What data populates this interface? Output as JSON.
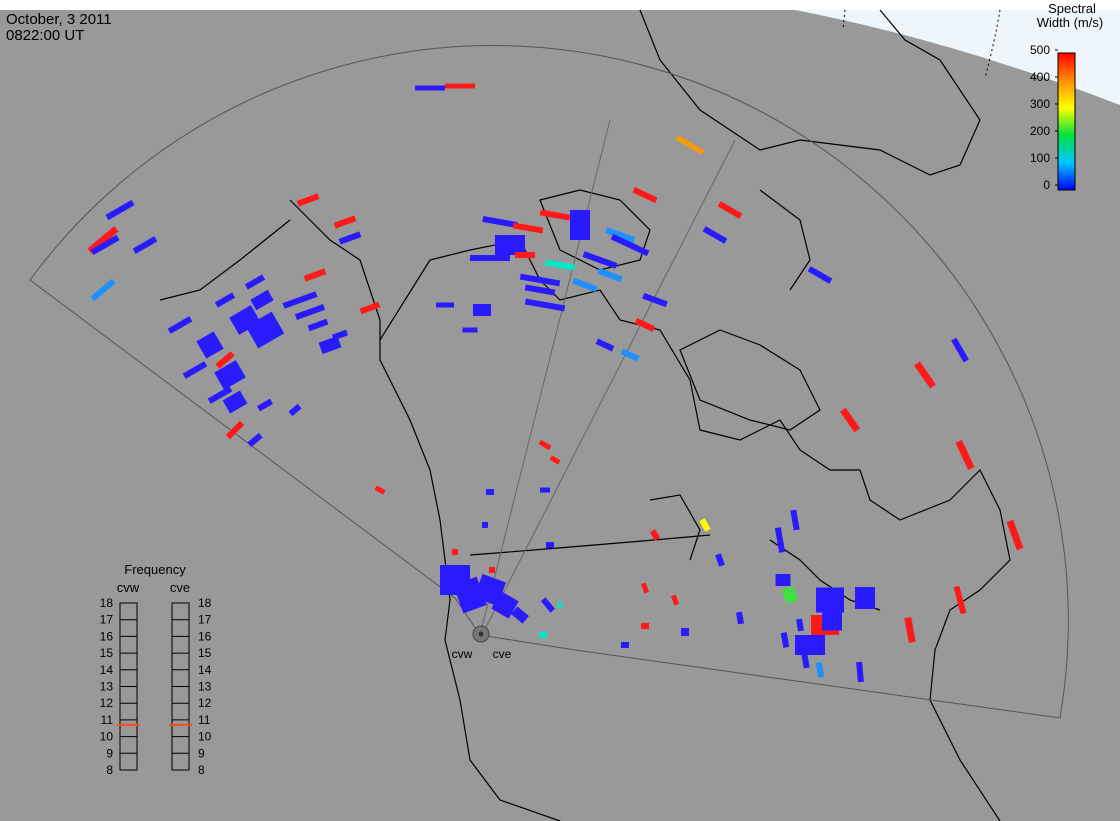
{
  "header": {
    "date": "October, 3 2011",
    "time": "0822:00 UT"
  },
  "colorbar": {
    "title": [
      "Spectral",
      "Width (m/s)"
    ],
    "range": [
      0,
      500
    ],
    "ticks": [
      0,
      100,
      200,
      300,
      400,
      500
    ],
    "colors": [
      "#0000ff",
      "#00c8ff",
      "#00e040",
      "#ffff00",
      "#ff8c00",
      "#ff0000"
    ]
  },
  "frequency": {
    "title": "Frequency",
    "range": [
      8,
      18
    ],
    "ticks": [
      8,
      9,
      10,
      11,
      12,
      13,
      14,
      15,
      16,
      17,
      18
    ],
    "marker_color": "#ff4a1a",
    "radars": [
      {
        "name": "cvw",
        "value": 10.7
      },
      {
        "name": "cve",
        "value": 10.7
      }
    ]
  },
  "sites": [
    "cvw",
    "cve"
  ]
}
